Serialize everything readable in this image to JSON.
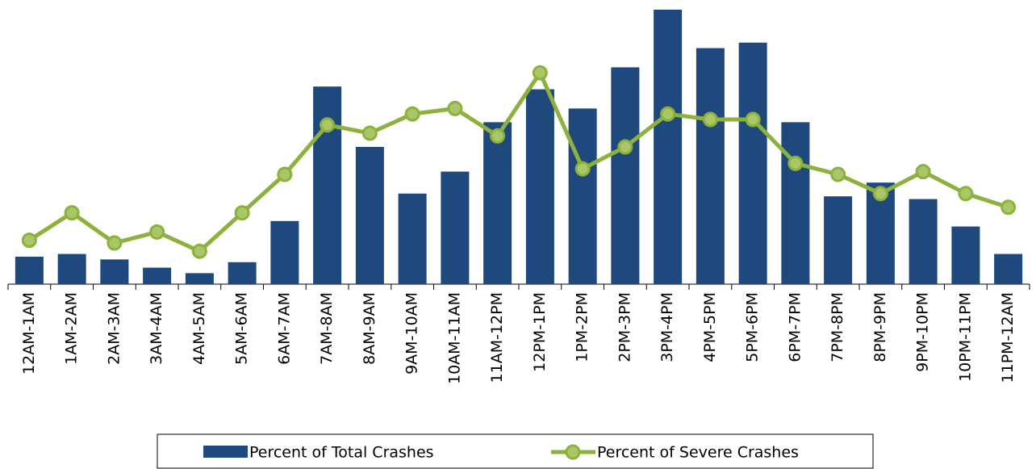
{
  "chart_data": {
    "type": "bar-line",
    "categories": [
      "12AM-1AM",
      "1AM-2AM",
      "2AM-3AM",
      "3AM-4AM",
      "4AM-5AM",
      "5AM-6AM",
      "6AM-7AM",
      "7AM-8AM",
      "8AM-9AM",
      "9AM-10AM",
      "10AM-11AM",
      "11AM-12PM",
      "12PM-1PM",
      "1PM-2PM",
      "2PM-3PM",
      "3PM-4PM",
      "4PM-5PM",
      "5PM-6PM",
      "6PM-7PM",
      "7PM-8PM",
      "8PM-9PM",
      "9PM-10PM",
      "10PM-11PM",
      "11PM-12AM"
    ],
    "series": [
      {
        "name": "Percent of Total Crashes",
        "type": "bar",
        "color": "#1f487c",
        "values": [
          1.0,
          1.1,
          0.9,
          0.6,
          0.4,
          0.8,
          2.3,
          7.2,
          5.0,
          3.3,
          4.1,
          5.9,
          7.1,
          6.4,
          7.9,
          10.0,
          8.6,
          8.8,
          5.9,
          3.2,
          3.7,
          3.1,
          2.1,
          1.1
        ]
      },
      {
        "name": "Percent of Severe Crashes",
        "type": "line",
        "color": "#8cb13c",
        "values": [
          1.6,
          2.6,
          1.5,
          1.9,
          1.2,
          2.6,
          4.0,
          5.8,
          5.5,
          6.2,
          6.4,
          5.4,
          7.7,
          4.2,
          5.0,
          6.2,
          6.0,
          6.0,
          4.4,
          4.0,
          3.3,
          4.1,
          3.3,
          2.8
        ]
      }
    ],
    "ylim": [
      0,
      10
    ],
    "legend": "bottom"
  }
}
